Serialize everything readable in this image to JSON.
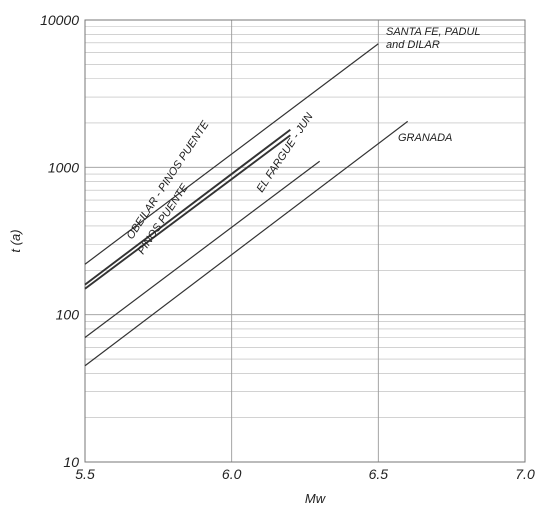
{
  "chart_data": {
    "type": "line",
    "xlabel": "Mw",
    "ylabel": "t (a)",
    "xlim": [
      5.5,
      7.0
    ],
    "ylim": [
      10,
      10000
    ],
    "yscale": "log",
    "xticks": [
      "5.5",
      "6.0",
      "6.5",
      "7.0"
    ],
    "yticks": [
      "10",
      "100",
      "1000",
      "10000"
    ],
    "grid": true,
    "series": [
      {
        "name": "SANTA FE, PADUL and DILAR",
        "x": [
          5.5,
          6.5
        ],
        "y": [
          220,
          6900
        ]
      },
      {
        "name": "OBEILAR - PINOS PUENTE",
        "x": [
          5.5,
          6.2
        ],
        "y": [
          160,
          1800
        ]
      },
      {
        "name": "PINOS PUENTE",
        "x": [
          5.5,
          6.2
        ],
        "y": [
          150,
          1650
        ]
      },
      {
        "name": "EL FARGUE - JUN",
        "x": [
          5.5,
          6.3
        ],
        "y": [
          70,
          1100
        ]
      },
      {
        "name": "GRANADA",
        "x": [
          5.5,
          6.6
        ],
        "y": [
          45,
          2050
        ]
      }
    ]
  }
}
